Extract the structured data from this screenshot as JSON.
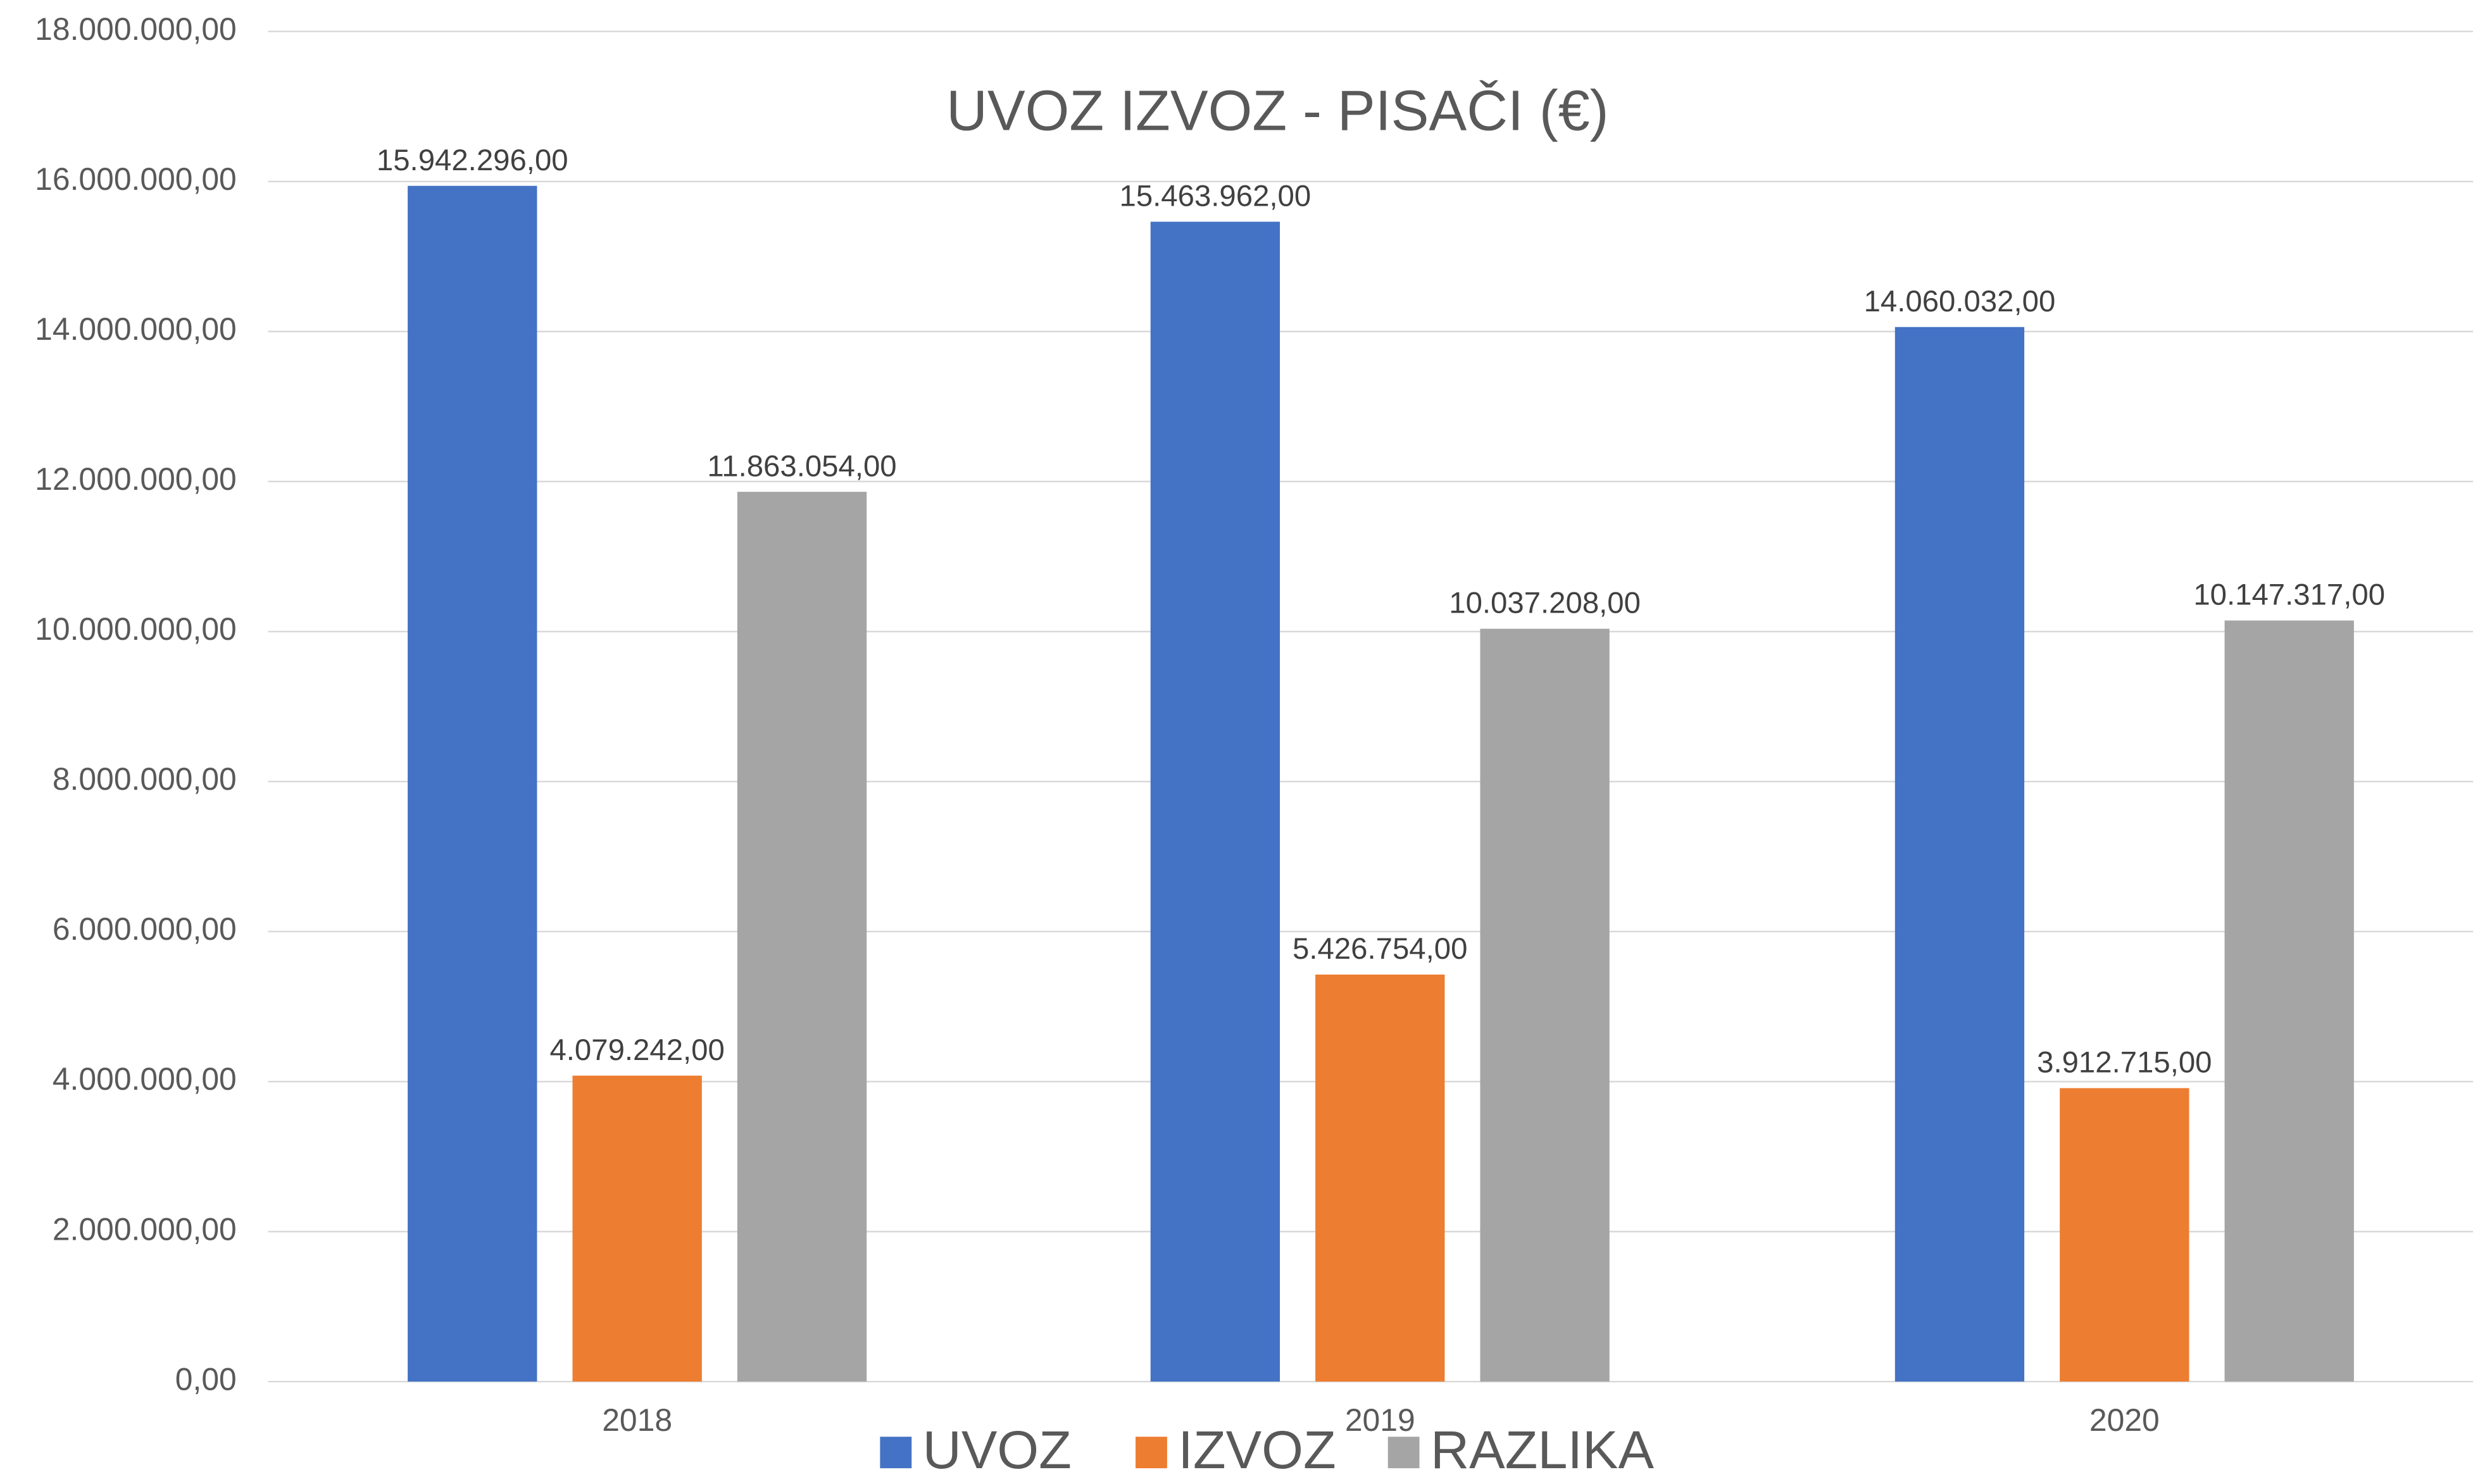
{
  "chart_data": {
    "type": "bar",
    "title": "UVOZ  IZVOZ - PISAČI  (€)",
    "categories": [
      "2018",
      "2019",
      "2020"
    ],
    "series": [
      {
        "name": "UVOZ",
        "color": "#4472c4",
        "values": [
          15942296,
          15463962,
          14060032
        ],
        "value_labels": [
          "15.942.296,00",
          "15.463.962,00",
          "14.060.032,00"
        ]
      },
      {
        "name": "IZVOZ",
        "color": "#ed7d31",
        "values": [
          4079242,
          5426754,
          3912715
        ],
        "value_labels": [
          "4.079.242,00",
          "5.426.754,00",
          "3.912.715,00"
        ]
      },
      {
        "name": "RAZLIKA",
        "color": "#a5a5a5",
        "values": [
          11863054,
          10037208,
          10147317
        ],
        "value_labels": [
          "11.863.054,00",
          "10.037.208,00",
          "10.147.317,00"
        ]
      }
    ],
    "ylim": [
      0,
      18000000
    ],
    "yticks": [
      {
        "value": 0,
        "label": "0,00"
      },
      {
        "value": 2000000,
        "label": "2.000.000,00"
      },
      {
        "value": 4000000,
        "label": "4.000.000,00"
      },
      {
        "value": 6000000,
        "label": "6.000.000,00"
      },
      {
        "value": 8000000,
        "label": "8.000.000,00"
      },
      {
        "value": 10000000,
        "label": "10.000.000,00"
      },
      {
        "value": 12000000,
        "label": "12.000.000,00"
      },
      {
        "value": 14000000,
        "label": "14.000.000,00"
      },
      {
        "value": 16000000,
        "label": "16.000.000,00"
      },
      {
        "value": 18000000,
        "label": "18.000.000,00"
      }
    ],
    "grid": true,
    "legend": "bottom"
  }
}
